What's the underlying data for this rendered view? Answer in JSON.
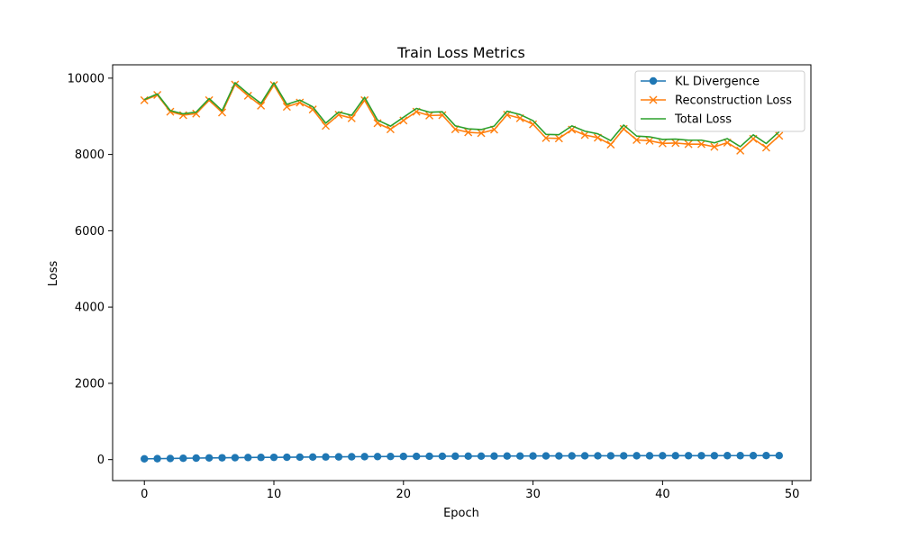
{
  "chart_data": {
    "type": "line",
    "title": "Train Loss Metrics",
    "xlabel": "Epoch",
    "ylabel": "Loss",
    "xlim": [
      -2.45,
      51.45
    ],
    "ylim": [
      -550,
      10350
    ],
    "xticks": [
      0,
      10,
      20,
      30,
      40,
      50
    ],
    "yticks": [
      0,
      2000,
      4000,
      6000,
      8000,
      10000
    ],
    "grid": false,
    "legend_position": "top-right",
    "x": [
      0,
      1,
      2,
      3,
      4,
      5,
      6,
      7,
      8,
      9,
      10,
      11,
      12,
      13,
      14,
      15,
      16,
      17,
      18,
      19,
      20,
      21,
      22,
      23,
      24,
      25,
      26,
      27,
      28,
      29,
      30,
      31,
      32,
      33,
      34,
      35,
      36,
      37,
      38,
      39,
      40,
      41,
      42,
      43,
      44,
      45,
      46,
      47,
      48,
      49
    ],
    "series": [
      {
        "name": "KL Divergence",
        "color": "#1f77b4",
        "marker": "circle",
        "values": [
          20,
          25,
          30,
          35,
          40,
          45,
          48,
          50,
          55,
          58,
          60,
          62,
          65,
          68,
          70,
          72,
          75,
          78,
          80,
          82,
          84,
          86,
          88,
          89,
          90,
          91,
          92,
          93,
          94,
          95,
          96,
          97,
          98,
          99,
          100,
          100,
          101,
          101,
          102,
          102,
          103,
          103,
          104,
          104,
          104,
          105,
          105,
          105,
          106,
          106
        ]
      },
      {
        "name": "Reconstruction Loss",
        "color": "#ff7f0e",
        "marker": "x",
        "values": [
          9420,
          9560,
          9120,
          9030,
          9070,
          9420,
          9100,
          9830,
          9540,
          9280,
          9820,
          9250,
          9360,
          9180,
          8750,
          9040,
          8950,
          9420,
          8820,
          8660,
          8890,
          9120,
          9020,
          9030,
          8660,
          8580,
          8560,
          8650,
          9040,
          8950,
          8790,
          8430,
          8420,
          8650,
          8510,
          8440,
          8260,
          8670,
          8380,
          8360,
          8290,
          8300,
          8270,
          8270,
          8200,
          8310,
          8100,
          8410,
          8180,
          8490
        ]
      },
      {
        "name": "Total Loss",
        "color": "#2ca02c",
        "marker": "none",
        "values": [
          9440,
          9585,
          9150,
          9065,
          9110,
          9465,
          9148,
          9880,
          9595,
          9338,
          9880,
          9312,
          9425,
          9248,
          8820,
          9112,
          9025,
          9498,
          8900,
          8742,
          8974,
          9206,
          9108,
          9119,
          8750,
          8671,
          8652,
          8743,
          9134,
          9045,
          8886,
          8527,
          8518,
          8749,
          8610,
          8540,
          8361,
          8771,
          8482,
          8462,
          8393,
          8403,
          8374,
          8374,
          8304,
          8415,
          8205,
          8515,
          8286,
          8596
        ]
      }
    ]
  }
}
